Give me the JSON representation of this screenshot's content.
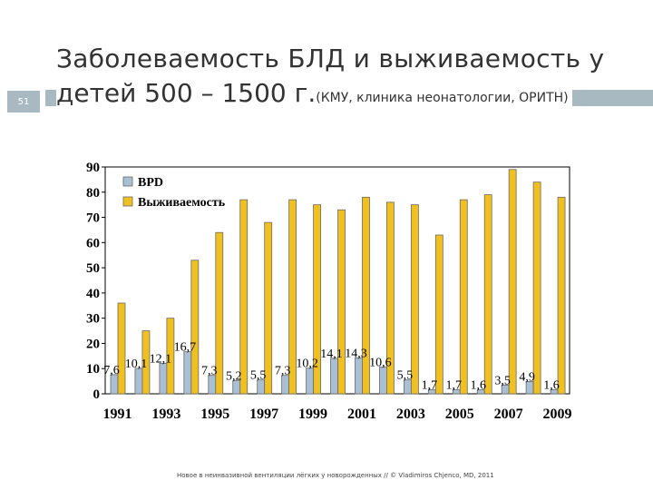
{
  "slide": {
    "number": "51",
    "title_line1": "Заболеваемость БЛД и выживаемость у",
    "title_line2_main": "детей 500 – 1500 г.",
    "title_line2_sub": "(КМУ, клиника неонатологии, ОРИТН)",
    "footer": "Новое в неинвазивной вентиляции лёгких у новорожденных // © Vladimiros Chjenco, MD, 2011"
  },
  "colors": {
    "bpd": "#a9bfd3",
    "survival": "#f0c020",
    "bar_outline": "#6a6a6a"
  },
  "chart_data": {
    "type": "bar",
    "categories": [
      "1991",
      "1992",
      "1993",
      "1994",
      "1995",
      "1996",
      "1997",
      "1998",
      "1999",
      "2000",
      "2001",
      "2002",
      "2003",
      "2004",
      "2005",
      "2006",
      "2007",
      "2008",
      "2009"
    ],
    "x_tick_labels": [
      "1991",
      "1993",
      "1995",
      "1997",
      "1999",
      "2001",
      "2003",
      "2005",
      "2007",
      "2009"
    ],
    "series": [
      {
        "name": "BPD",
        "values": [
          7.6,
          10.1,
          12.1,
          16.7,
          7.3,
          5.2,
          5.5,
          7.3,
          10.2,
          14.1,
          14.3,
          10.6,
          5.5,
          1.7,
          1.7,
          1.6,
          3.5,
          4.9,
          1.6
        ],
        "labels": [
          "7,6",
          "10,1",
          "12,1",
          "16,7",
          "7,3",
          "5,2",
          "5,5",
          "7,3",
          "10,2",
          "14,1",
          "14,3",
          "10,6",
          "5,5",
          "1,7",
          "1,7",
          "1,6",
          "3,5",
          "4,9",
          "1,6"
        ]
      },
      {
        "name": "Выживаемость",
        "values": [
          36,
          25,
          30,
          53,
          64,
          77,
          68,
          77,
          75,
          73,
          78,
          76,
          75,
          63,
          77,
          79,
          89,
          84,
          78
        ]
      }
    ],
    "yticks": [
      0,
      10,
      20,
      30,
      40,
      50,
      60,
      70,
      80,
      90
    ],
    "ylim": [
      0,
      90
    ],
    "legend_position": "top-left",
    "grid": false,
    "xlabel": "",
    "ylabel": ""
  }
}
